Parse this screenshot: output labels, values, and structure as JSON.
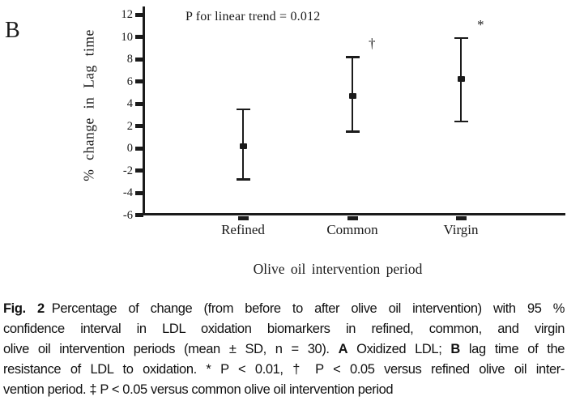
{
  "panel_label": "B",
  "colors": {
    "ink": "#1b1b1b",
    "background": "#ffffff"
  },
  "chart_data": {
    "type": "scatter",
    "subtype": "mean-with-95ci-error-bars",
    "annotation": "P for linear trend = 0.012",
    "xlabel": "Olive oil intervention period",
    "ylabel": "% change in Lag time",
    "categories": [
      "Refined",
      "Common",
      "Virgin"
    ],
    "yticks": [
      12,
      10,
      8,
      6,
      4,
      2,
      0,
      -2,
      -4,
      -6
    ],
    "ylim": [
      -6,
      12.5
    ],
    "grid": false,
    "legend": "none",
    "series": [
      {
        "name": "lag_time_percent_change",
        "points": [
          {
            "category": "Refined",
            "mean": 0.2,
            "ci_low": -2.8,
            "ci_high": 3.5,
            "significance": ""
          },
          {
            "category": "Common",
            "mean": 4.7,
            "ci_low": 1.5,
            "ci_high": 8.2,
            "significance": "†"
          },
          {
            "category": "Virgin",
            "mean": 6.2,
            "ci_low": 2.4,
            "ci_high": 9.9,
            "significance": "*"
          }
        ]
      }
    ]
  },
  "caption": {
    "lines": [
      [
        {
          "t": "Fig. 2",
          "b": true,
          "fig": true
        },
        {
          "t": "Percentage of change (from before to after olive oil intervention) with 95 %",
          "b": false
        }
      ],
      [
        {
          "t": "confidence interval in LDL oxidation biomarkers in refined, common, and virgin",
          "b": false
        }
      ],
      [
        {
          "t": "olive oil intervention periods (mean ± SD, n = 30). ",
          "b": false
        },
        {
          "t": "A",
          "b": true
        },
        {
          "t": " Oxidized LDL; ",
          "b": false
        },
        {
          "t": "B",
          "b": true
        },
        {
          "t": " lag time of the",
          "b": false
        }
      ],
      [
        {
          "t": "resistance of LDL to oxidation. * P < 0.01, † P < 0.05 versus refined olive oil inter-",
          "b": false
        }
      ],
      [
        {
          "t": "vention period. ‡ P < 0.05 versus common olive oil intervention period",
          "b": false
        }
      ]
    ]
  }
}
